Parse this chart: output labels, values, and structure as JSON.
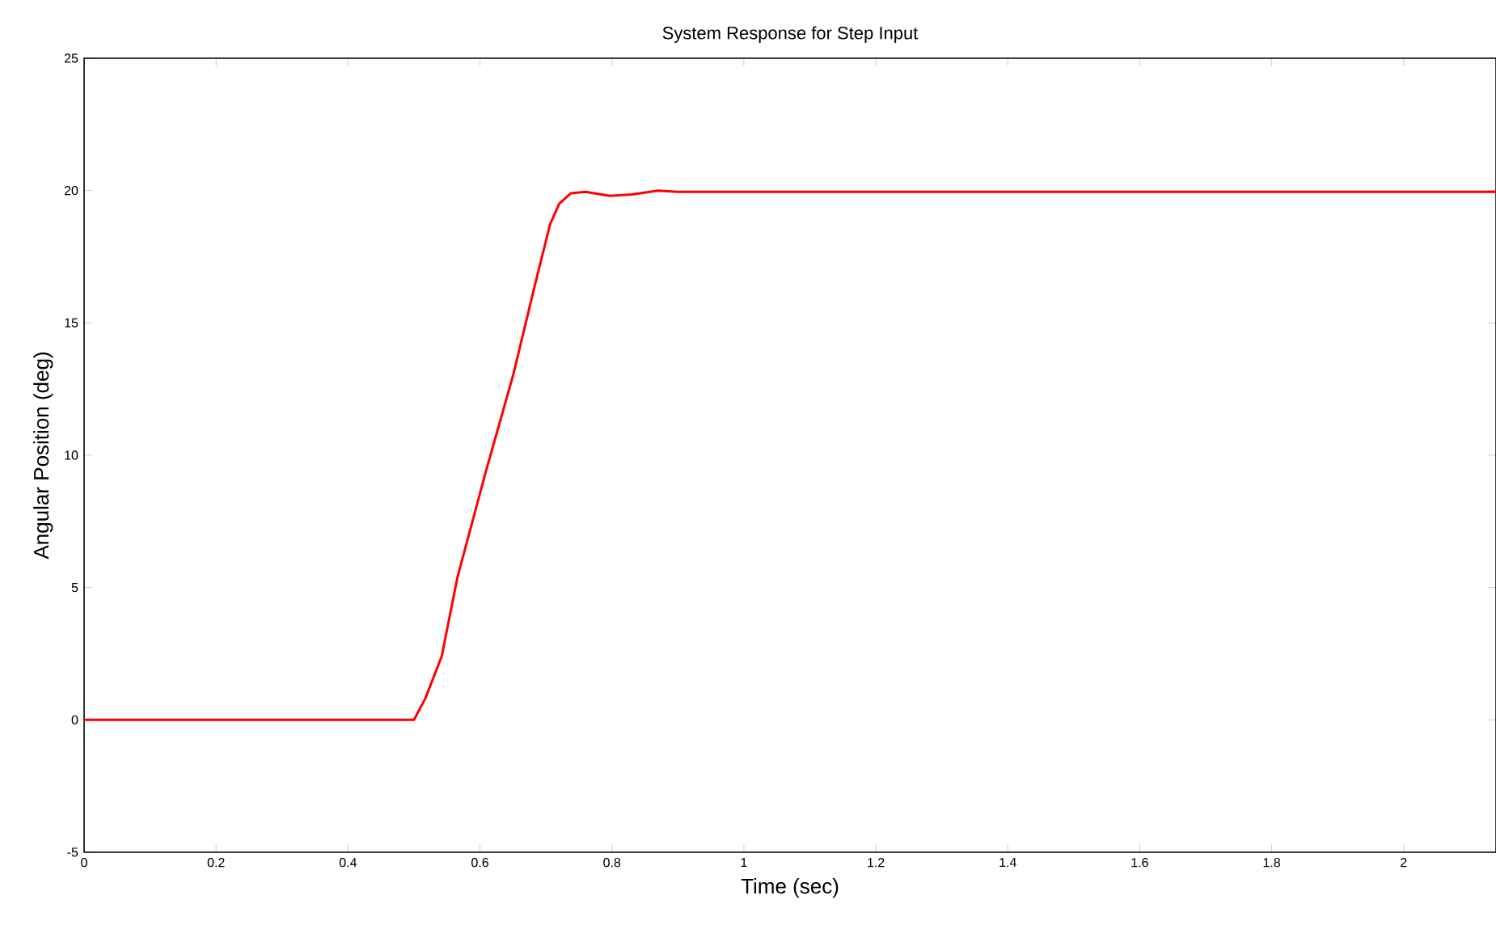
{
  "chart_data": {
    "type": "line",
    "title": "System Response for Step Input",
    "xlabel": "Time (sec)",
    "ylabel": "Angular Position (deg)",
    "x": [
      0,
      0.2,
      0.4,
      0.5,
      0.517,
      0.542,
      0.566,
      0.608,
      0.65,
      0.681,
      0.706,
      0.72,
      0.738,
      0.76,
      0.797,
      0.83,
      0.87,
      0.9,
      1.2,
      1.6,
      2.14
    ],
    "series": [
      {
        "color": "#ff0000",
        "values": [
          0,
          0,
          0,
          0,
          0.8,
          2.4,
          5.4,
          9.3,
          13.0,
          16.2,
          18.7,
          19.5,
          19.9,
          19.95,
          19.8,
          19.85,
          20.0,
          19.95,
          19.95,
          19.95,
          19.95
        ]
      }
    ],
    "xlim": [
      0,
      2.14
    ],
    "ylim": [
      -5,
      25
    ],
    "xticks": [
      0,
      0.2,
      0.4,
      0.6,
      0.8,
      1,
      1.2,
      1.4,
      1.6,
      1.8,
      2
    ],
    "yticks": [
      -5,
      0,
      5,
      10,
      15,
      20,
      25
    ],
    "grid": false
  }
}
